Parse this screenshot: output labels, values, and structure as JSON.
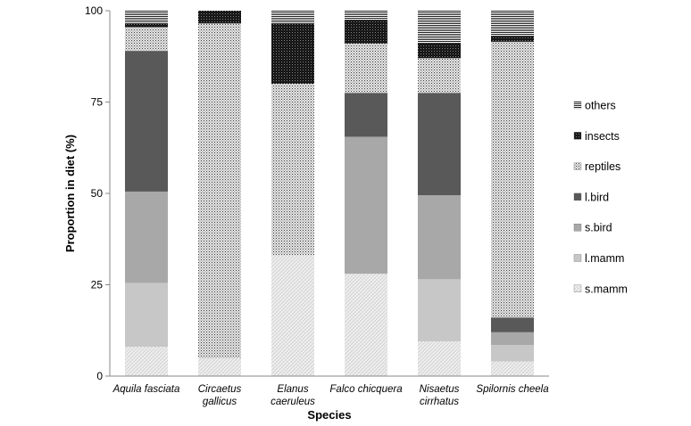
{
  "chart_data": {
    "type": "bar",
    "stacked": true,
    "xlabel": "Species",
    "ylabel": "Proportion in diet  (%)",
    "ylim": [
      0,
      100
    ],
    "yticks": [
      0,
      25,
      50,
      75,
      100
    ],
    "categories": [
      [
        "Aquila fasciata"
      ],
      [
        "Circaetus",
        "gallicus"
      ],
      [
        "Elanus",
        "caeruleus"
      ],
      [
        "Falco chicquera"
      ],
      [
        "Nisaetus",
        "cirrhatus"
      ],
      [
        "Spilornis cheela"
      ]
    ],
    "series": [
      {
        "name": "s.mamm",
        "values": [
          8,
          5,
          33,
          28,
          9.5,
          4
        ],
        "fill": "url(#pat-smamm)"
      },
      {
        "name": "l.mamm",
        "values": [
          17.5,
          0,
          0,
          0,
          17,
          4.5
        ],
        "fill": "#c7c7c7"
      },
      {
        "name": "s.bird",
        "values": [
          25,
          0,
          0,
          37.5,
          23,
          3.5
        ],
        "fill": "#a8a8a8"
      },
      {
        "name": "l.bird",
        "values": [
          38.5,
          0,
          0,
          12,
          28,
          4
        ],
        "fill": "#595959"
      },
      {
        "name": "reptiles",
        "values": [
          6.5,
          91.5,
          47,
          13.5,
          9.5,
          75.5
        ],
        "fill": "url(#pat-reptiles)"
      },
      {
        "name": "insects",
        "values": [
          1,
          3.5,
          16.5,
          6.5,
          4,
          1.5
        ],
        "fill": "url(#pat-insects)"
      },
      {
        "name": "others",
        "values": [
          3.5,
          0,
          3.5,
          2.5,
          9,
          7
        ],
        "fill": "url(#pat-others)"
      }
    ],
    "legend_position": "right",
    "legend_order": [
      "others",
      "insects",
      "reptiles",
      "l.bird",
      "s.bird",
      "l.mamm",
      "s.mamm"
    ],
    "grid": false
  }
}
